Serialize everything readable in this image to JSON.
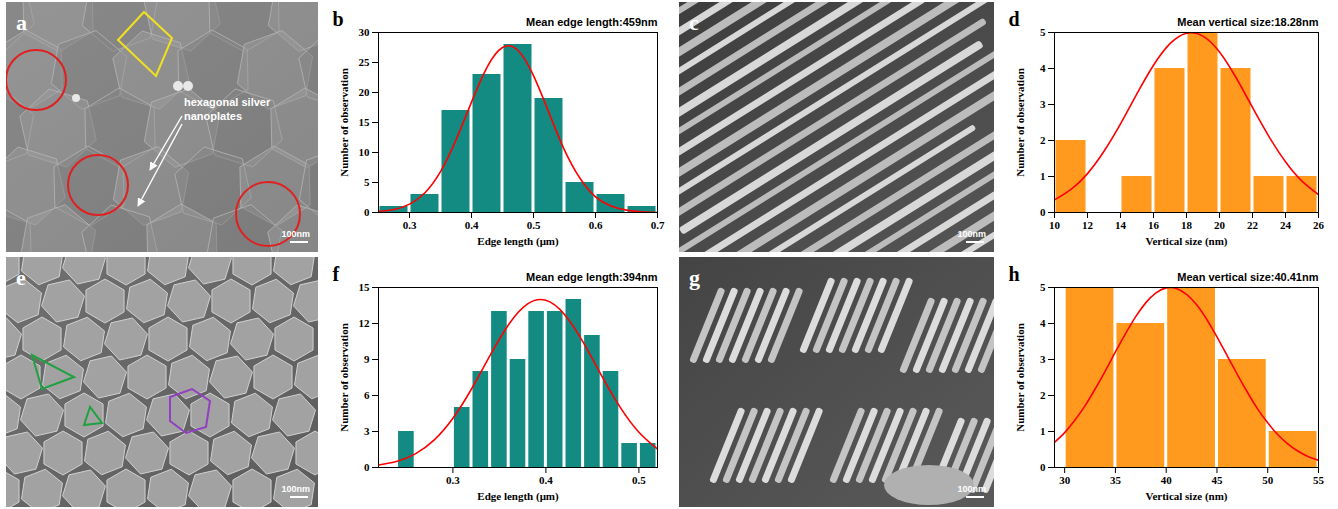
{
  "chart_data": [
    {
      "type": "histogram",
      "panel": "b",
      "annotation": "Mean edge length:459nm",
      "x_label": "Edge length (μm)",
      "y_label": "Number of observation",
      "bins": [
        0.25,
        0.3,
        0.35,
        0.4,
        0.45,
        0.5,
        0.55,
        0.6,
        0.65,
        0.7
      ],
      "values": [
        1,
        3,
        17,
        23,
        28,
        19,
        5,
        3,
        1
      ],
      "color": "#138a82",
      "xlim": [
        0.25,
        0.7
      ],
      "xticks": [
        0.3,
        0.4,
        0.5,
        0.6,
        0.7
      ],
      "ylim": [
        0,
        30
      ],
      "yticks": [
        0,
        5,
        10,
        15,
        20,
        25,
        30
      ],
      "grid": false,
      "fit": {
        "type": "line",
        "color": "#ff0000",
        "x": [
          0.25,
          0.275,
          0.3,
          0.325,
          0.35,
          0.375,
          0.4,
          0.425,
          0.45,
          0.475,
          0.5,
          0.525,
          0.55,
          0.575,
          0.6,
          0.625,
          0.65,
          0.675,
          0.7
        ],
        "values": [
          0.2,
          0.5,
          1.4,
          3.3,
          6.8,
          12.1,
          18.4,
          24.2,
          27.5,
          27.0,
          22.8,
          16.6,
          10.4,
          5.7,
          2.6,
          1.1,
          0.4,
          0.1,
          0.0
        ]
      }
    },
    {
      "type": "histogram",
      "panel": "d",
      "annotation": "Mean vertical size:18.28nm",
      "x_label": "Vertical size (nm)",
      "y_label": "Number of observation",
      "bins": [
        10,
        12,
        14,
        16,
        18,
        20,
        22,
        24,
        26
      ],
      "values": [
        2,
        0,
        1,
        4,
        5,
        4,
        1,
        1
      ],
      "color": "#ff9a1f",
      "xlim": [
        10,
        26
      ],
      "xticks": [
        10,
        12,
        14,
        16,
        18,
        20,
        22,
        24,
        26
      ],
      "ylim": [
        0,
        5
      ],
      "yticks": [
        0,
        1,
        2,
        3,
        4,
        5
      ],
      "grid": false,
      "fit": {
        "type": "line",
        "color": "#ff0000",
        "x": [
          10,
          11,
          12,
          13,
          14,
          15,
          16,
          17,
          18,
          19,
          20,
          21,
          22,
          23,
          24,
          25,
          26
        ],
        "values": [
          0.35,
          0.64,
          1.08,
          1.7,
          2.46,
          3.3,
          4.09,
          4.69,
          4.98,
          4.9,
          4.46,
          3.75,
          2.92,
          2.11,
          1.41,
          0.87,
          0.5
        ]
      }
    },
    {
      "type": "histogram",
      "panel": "f",
      "annotation": "Mean edge length:394nm",
      "x_label": "Edge length (μm)",
      "y_label": "Number of observation",
      "bins": [
        0.24,
        0.26,
        0.28,
        0.3,
        0.32,
        0.34,
        0.36,
        0.38,
        0.4,
        0.42,
        0.44,
        0.46,
        0.48,
        0.5,
        0.52
      ],
      "values": [
        3,
        0,
        0,
        5,
        8,
        13,
        9,
        13,
        13,
        14,
        11,
        8,
        2,
        2
      ],
      "color": "#138a82",
      "xlim": [
        0.22,
        0.52
      ],
      "xticks": [
        0.3,
        0.4,
        0.5
      ],
      "ylim": [
        0,
        15
      ],
      "yticks": [
        0,
        3,
        6,
        9,
        12,
        15
      ],
      "grid": false,
      "fit": {
        "type": "line",
        "color": "#ff0000",
        "x": [
          0.22,
          0.24,
          0.26,
          0.28,
          0.3,
          0.32,
          0.34,
          0.36,
          0.38,
          0.4,
          0.42,
          0.44,
          0.46,
          0.48,
          0.5,
          0.52
        ],
        "values": [
          0.21,
          0.52,
          1.16,
          2.3,
          4.1,
          6.54,
          9.34,
          11.92,
          13.62,
          13.93,
          12.75,
          10.44,
          7.64,
          5.01,
          2.94,
          1.54
        ]
      }
    },
    {
      "type": "histogram",
      "panel": "h",
      "annotation": "Mean vertical size:40.41nm",
      "x_label": "Vertical size (nm)",
      "y_label": "Number of observation",
      "bins": [
        30,
        35,
        40,
        45,
        50,
        55
      ],
      "values": [
        5,
        4,
        5,
        3,
        1
      ],
      "color": "#ff9a1f",
      "xlim": [
        29,
        55
      ],
      "xticks": [
        30,
        35,
        40,
        45,
        50,
        55
      ],
      "ylim": [
        0,
        5
      ],
      "yticks": [
        0,
        1,
        2,
        3,
        4,
        5
      ],
      "grid": false,
      "fit": {
        "type": "line",
        "color": "#ff0000",
        "x": [
          29,
          30,
          31,
          32,
          33,
          34,
          35,
          36,
          37,
          38,
          39,
          40,
          41,
          42,
          43,
          44,
          45,
          46,
          47,
          48,
          49,
          50,
          51,
          52,
          53,
          54,
          55
        ],
        "values": [
          0.7,
          0.97,
          1.31,
          1.71,
          2.18,
          2.68,
          3.21,
          3.72,
          4.19,
          4.58,
          4.85,
          4.99,
          4.97,
          4.81,
          4.52,
          4.11,
          3.63,
          3.11,
          2.59,
          2.09,
          1.63,
          1.24,
          0.91,
          0.65,
          0.45,
          0.3,
          0.2
        ]
      }
    }
  ],
  "images": [
    {
      "panel": "a",
      "annotation": "hexagonal silver nanoplates",
      "scale_bar": "100nm"
    },
    {
      "panel": "c",
      "scale_bar": "100nm"
    },
    {
      "panel": "e",
      "scale_bar": "100nm"
    },
    {
      "panel": "g",
      "scale_bar": "100nm"
    }
  ]
}
